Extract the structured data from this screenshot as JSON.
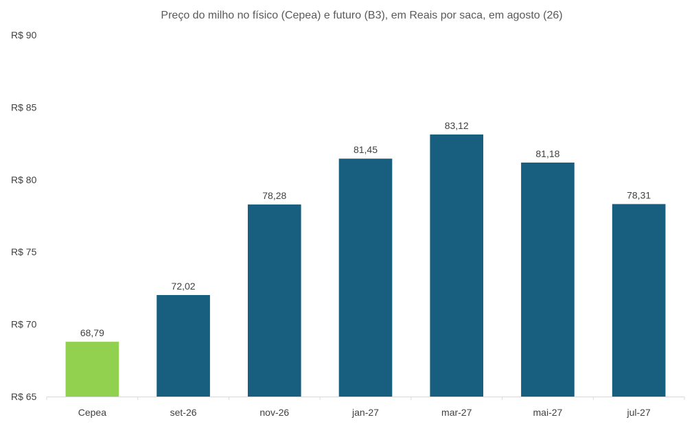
{
  "chart_data": {
    "type": "bar",
    "title": "Preço do milho no físico (Cepea) e futuro (B3), em Reais por saca, em agosto (26)",
    "categories": [
      "Cepea",
      "set-26",
      "nov-26",
      "jan-27",
      "mar-27",
      "mai-27",
      "jul-27"
    ],
    "values": [
      68.79,
      72.02,
      78.28,
      81.45,
      83.12,
      81.18,
      78.31
    ],
    "value_labels": [
      "68,79",
      "72,02",
      "78,28",
      "81,45",
      "83,12",
      "81,18",
      "78,31"
    ],
    "bar_colors": [
      "#92d050",
      "#175e7f",
      "#175e7f",
      "#175e7f",
      "#175e7f",
      "#175e7f",
      "#175e7f"
    ],
    "ylim": [
      65,
      90
    ],
    "yticks": [
      65,
      70,
      75,
      80,
      85,
      90
    ],
    "ytick_labels": [
      "R$ 65",
      "R$ 70",
      "R$ 75",
      "R$ 80",
      "R$ 85",
      "R$ 90"
    ],
    "xlabel": "",
    "ylabel": "",
    "grid": false,
    "legend": false
  },
  "colors": {
    "axis": "#d9d9d9",
    "text": "#404040",
    "title": "#595959"
  }
}
